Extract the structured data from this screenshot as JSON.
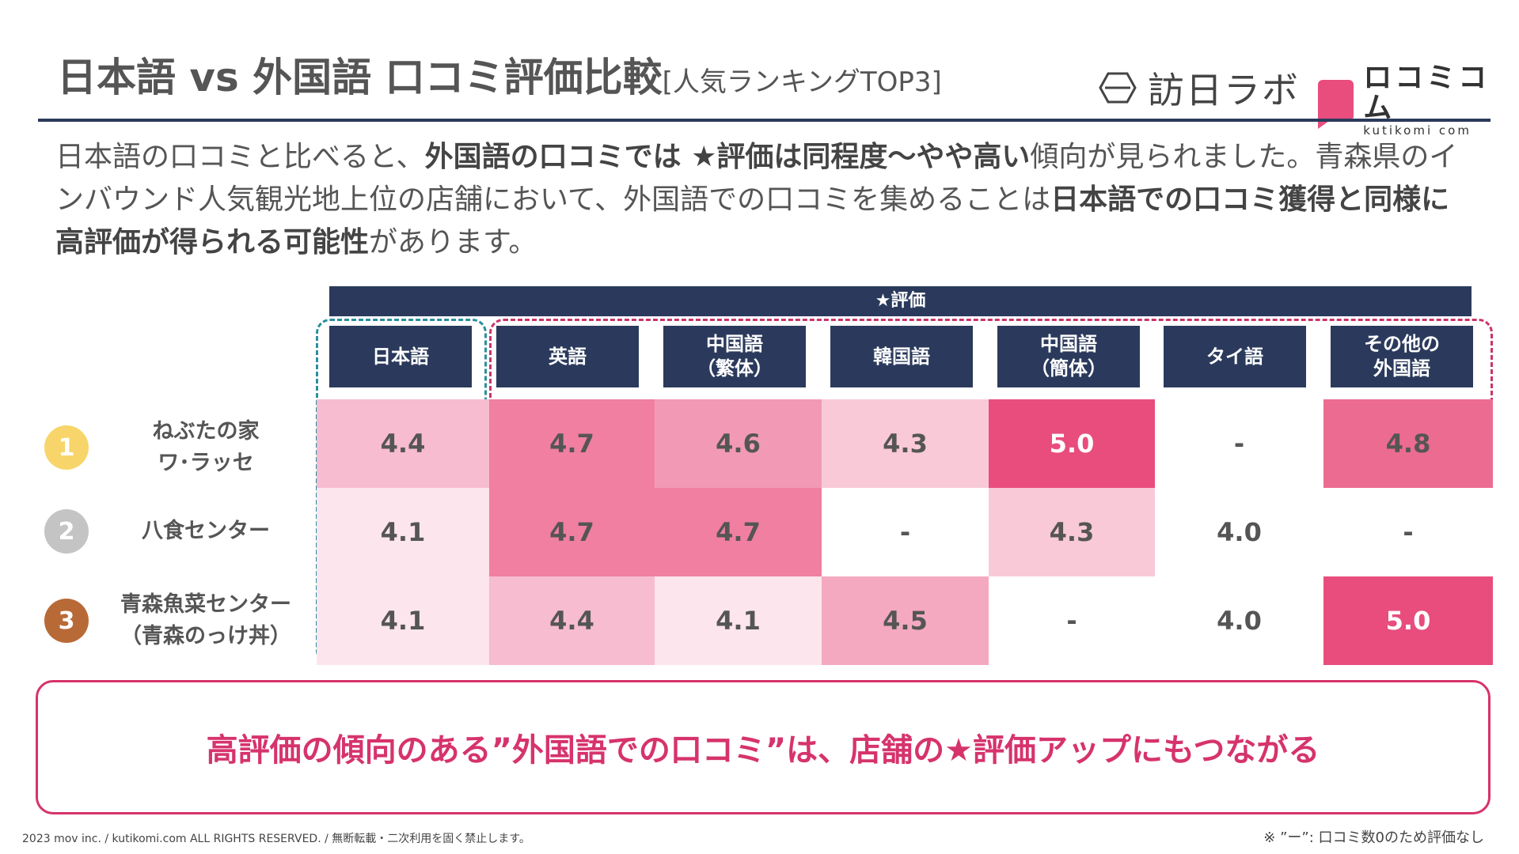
{
  "header": {
    "title": "日本語 vs 外国語 口コミ評価比較",
    "subtitle": "[人気ランキングTOP3]",
    "logo_houjin": "訪日ラボ",
    "logo_kuti_main": "ロコミコム",
    "logo_kuti_sub": "kutikomi com"
  },
  "intro": {
    "p1": "日本語の口コミと比べると、",
    "b1": "外国語の口コミでは ★評価は同程度〜やや高い",
    "p2": "傾向が見られました。青森県のインバウンド人気観光地上位の店舗において、外国語での口コミを集めることは",
    "b2": "日本語での口コミ獲得と同様に高評価が得られる可能性",
    "p3": "があります。"
  },
  "table": {
    "eval_label": "★評価",
    "columns": [
      "日本語",
      "英語",
      "中国語\n（繁体）",
      "韓国語",
      "中国語\n（簡体）",
      "タイ語",
      "その他の\n外国語"
    ],
    "rows": [
      {
        "rank": "1",
        "rank_color": "#f7d56a",
        "name": "ねぶたの家\nワ･ラッセ",
        "values": [
          "4.4",
          "4.7",
          "4.6",
          "4.3",
          "5.0",
          "-",
          "4.8"
        ]
      },
      {
        "rank": "2",
        "rank_color": "#c4c4c4",
        "name": "八食センター",
        "values": [
          "4.1",
          "4.7",
          "4.7",
          "-",
          "4.3",
          "4.0",
          "-"
        ]
      },
      {
        "rank": "3",
        "rank_color": "#b86a36",
        "name": "青森魚菜センター\n（青森のっけ丼）",
        "values": [
          "4.1",
          "4.4",
          "4.1",
          "4.5",
          "-",
          "4.0",
          "5.0"
        ]
      }
    ]
  },
  "callout": "高評価の傾向のある”外国語での口コミ”は、店舗の★評価アップにもつながる",
  "footer": {
    "copyright": "2023 mov inc. / kutikomi.com ALL RIGHTS RESERVED. / 無断転載・二次利用を固く禁止します。",
    "note": "※ ”ー”: 口コミ数0のため評価なし"
  }
}
